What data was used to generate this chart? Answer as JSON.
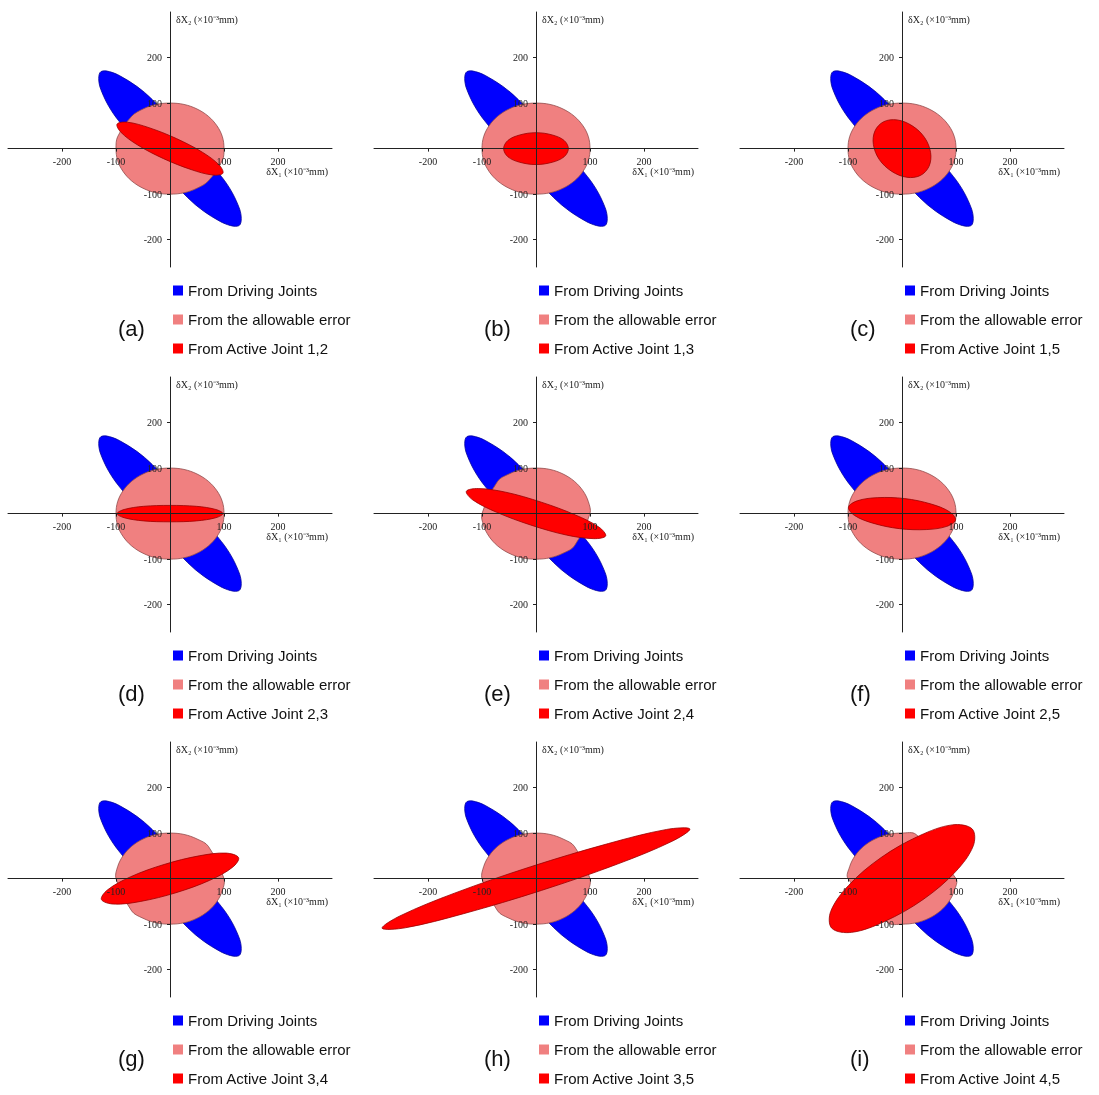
{
  "chart_data": [
    {
      "type": "area",
      "annotations": [
        "(a)"
      ],
      "xlabel": "δX₁ (×10⁻³mm)",
      "ylabel": "δX₂ (×10⁻³mm)",
      "xlim": [
        -300,
        300
      ],
      "ylim": [
        -260,
        300
      ],
      "xticks": [
        -200,
        -100,
        100,
        200
      ],
      "yticks": [
        -200,
        -100,
        100,
        200
      ],
      "grid": false,
      "legend": "bottom",
      "series": [
        {
          "name": "From Driving Joints",
          "color": "#0000ff",
          "x": [
            128,
            129,
            95,
            -33,
            -93,
            -128,
            -129,
            -95,
            33,
            93
          ],
          "values": [
            -169,
            -133,
            -61,
            108,
            160,
            169,
            133,
            61,
            -108,
            -160
          ]
        },
        {
          "name": "From the allowable error",
          "color": "#f08080",
          "x": [
            100,
            97,
            87,
            71,
            50,
            26,
            0,
            -26,
            -50,
            -71,
            -97,
            -100,
            -97,
            -87,
            -71,
            -50,
            -26,
            0,
            26,
            50,
            71,
            97
          ],
          "values": [
            0,
            26,
            50,
            71,
            87,
            97,
            100,
            97,
            87,
            71,
            26,
            0,
            -26,
            -50,
            -71,
            -87,
            -97,
            -100,
            -97,
            -87,
            -71,
            -26
          ]
        },
        {
          "name": "From Active Joint 1,2",
          "color": "#ff0000",
          "x": [
            98,
            91,
            60,
            12,
            -39,
            -79,
            -98,
            -91,
            -60,
            -12,
            39,
            79
          ],
          "values": [
            -54,
            -36,
            -8,
            22,
            46,
            58,
            54,
            36,
            8,
            -22,
            -46,
            -58
          ]
        }
      ]
    },
    {
      "type": "area",
      "annotations": [
        "(b)"
      ],
      "xlabel": "δX₁ (×10⁻³mm)",
      "ylabel": "δX₂ (×10⁻³mm)",
      "xlim": [
        -300,
        300
      ],
      "ylim": [
        -260,
        300
      ],
      "xticks": [
        -200,
        -100,
        100,
        200
      ],
      "yticks": [
        -200,
        -100,
        100,
        200
      ],
      "grid": false,
      "legend": "bottom",
      "series": [
        {
          "name": "From Driving Joints",
          "color": "#0000ff",
          "x": [
            128,
            129,
            95,
            -33,
            -93,
            -128,
            -129,
            -95,
            33,
            93
          ],
          "values": [
            -169,
            -133,
            -61,
            108,
            160,
            169,
            133,
            61,
            -108,
            -160
          ]
        },
        {
          "name": "From the allowable error",
          "color": "#f08080",
          "x": [
            100,
            97,
            87,
            71,
            50,
            26,
            0,
            -26,
            -50,
            -71,
            -87,
            -97,
            -100,
            -97,
            -87,
            -71,
            -50,
            -26,
            0,
            26,
            50,
            71,
            87,
            97
          ],
          "values": [
            0,
            26,
            50,
            71,
            87,
            97,
            100,
            97,
            87,
            71,
            50,
            26,
            0,
            -26,
            -50,
            -71,
            -87,
            -97,
            -100,
            -97,
            -87,
            -71,
            -50,
            -26
          ]
        },
        {
          "name": "From Active Joint 1,3",
          "color": "#ff0000",
          "x": [
            60,
            52,
            30,
            0,
            -30,
            -52,
            -60,
            -52,
            -30,
            0,
            30,
            52
          ],
          "values": [
            0,
            18,
            30,
            35,
            30,
            18,
            0,
            -18,
            -30,
            -35,
            -30,
            -18
          ]
        }
      ]
    },
    {
      "type": "area",
      "annotations": [
        "(c)"
      ],
      "xlabel": "δX₁ (×10⁻³mm)",
      "ylabel": "δX₂ (×10⁻³mm)",
      "xlim": [
        -300,
        300
      ],
      "ylim": [
        -260,
        300
      ],
      "xticks": [
        -200,
        -100,
        100,
        200
      ],
      "yticks": [
        -200,
        -100,
        100,
        200
      ],
      "grid": false,
      "legend": "bottom",
      "series": [
        {
          "name": "From Driving Joints",
          "color": "#0000ff",
          "x": [
            128,
            129,
            95,
            -33,
            -93,
            -128,
            -129,
            -95,
            33,
            93
          ],
          "values": [
            -169,
            -133,
            -61,
            108,
            160,
            169,
            133,
            61,
            -108,
            -160
          ]
        },
        {
          "name": "From the allowable error",
          "color": "#f08080",
          "x": [
            100,
            97,
            87,
            71,
            50,
            26,
            0,
            -26,
            -50,
            -71,
            -87,
            -97,
            -100,
            -97,
            -87,
            -71,
            -50,
            -26,
            0,
            26,
            50,
            71,
            87,
            97
          ],
          "values": [
            0,
            26,
            50,
            71,
            87,
            97,
            100,
            97,
            87,
            71,
            50,
            26,
            0,
            -26,
            -50,
            -71,
            -87,
            -97,
            -100,
            -97,
            -87,
            -71,
            -50,
            -26
          ]
        },
        {
          "name": "From Active Joint 1,5",
          "color": "#ff0000",
          "x": [
            34,
            50,
            53,
            42,
            19,
            -9,
            -34,
            -50,
            -53,
            -42,
            -19,
            9
          ],
          "values": [
            -59,
            -39,
            -9,
            24,
            50,
            63,
            59,
            39,
            9,
            -24,
            -50,
            -63
          ]
        }
      ]
    },
    {
      "type": "area",
      "annotations": [
        "(d)"
      ],
      "xlabel": "δX₁ (×10⁻³mm)",
      "ylabel": "δX₂ (×10⁻³mm)",
      "xlim": [
        -300,
        300
      ],
      "ylim": [
        -260,
        300
      ],
      "xticks": [
        -200,
        -100,
        100,
        200
      ],
      "yticks": [
        -200,
        -100,
        100,
        200
      ],
      "grid": false,
      "legend": "bottom",
      "series": [
        {
          "name": "From Driving Joints",
          "color": "#0000ff",
          "x": [
            128,
            129,
            95,
            -33,
            -93,
            -128,
            -129,
            -95,
            33,
            93
          ],
          "values": [
            -169,
            -133,
            -61,
            108,
            160,
            169,
            133,
            61,
            -108,
            -160
          ]
        },
        {
          "name": "From the allowable error",
          "color": "#f08080",
          "x": [
            100,
            97,
            87,
            71,
            50,
            26,
            0,
            -26,
            -50,
            -71,
            -87,
            -97,
            -100,
            -97,
            -87,
            -71,
            -50,
            -26,
            0,
            26,
            50,
            71,
            87,
            97
          ],
          "values": [
            0,
            26,
            50,
            71,
            87,
            97,
            100,
            97,
            87,
            71,
            50,
            26,
            0,
            -26,
            -50,
            -71,
            -87,
            -97,
            -100,
            -97,
            -87,
            -71,
            -50,
            -26
          ]
        },
        {
          "name": "From Active Joint 2,3",
          "color": "#ff0000",
          "x": [
            98,
            85,
            49,
            0,
            -49,
            -85,
            -98,
            -85,
            -49,
            0,
            49,
            85
          ],
          "values": [
            0,
            9,
            16,
            18,
            16,
            9,
            0,
            -9,
            -16,
            -18,
            -16,
            -9
          ]
        }
      ]
    },
    {
      "type": "area",
      "annotations": [
        "(e)"
      ],
      "xlabel": "δX₁ (×10⁻³mm)",
      "ylabel": "δX₂ (×10⁻³mm)",
      "xlim": [
        -300,
        300
      ],
      "ylim": [
        -260,
        300
      ],
      "xticks": [
        -200,
        -100,
        100,
        200
      ],
      "yticks": [
        -200,
        -100,
        100,
        200
      ],
      "grid": false,
      "legend": "bottom",
      "series": [
        {
          "name": "From Driving Joints",
          "color": "#0000ff",
          "x": [
            128,
            129,
            95,
            -33,
            -93,
            -128,
            -129,
            -95,
            33,
            93
          ],
          "values": [
            -169,
            -133,
            -61,
            108,
            160,
            169,
            133,
            61,
            -108,
            -160
          ]
        },
        {
          "name": "From the allowable error",
          "color": "#f08080",
          "x": [
            100,
            97,
            87,
            71,
            50,
            26,
            0,
            -26,
            -50,
            -71,
            -100,
            -97,
            -87,
            -71,
            -50,
            -26,
            0,
            26,
            50,
            71
          ],
          "values": [
            0,
            26,
            50,
            71,
            87,
            97,
            100,
            97,
            87,
            71,
            0,
            -26,
            -50,
            -71,
            -87,
            -97,
            -100,
            -97,
            -87,
            -71
          ]
        },
        {
          "name": "From Active Joint 2,4",
          "color": "#ff0000",
          "x": [
            129,
            117,
            73,
            10,
            -56,
            -107,
            -129,
            -117,
            -73,
            -10,
            56,
            107
          ],
          "values": [
            -49,
            -30,
            -3,
            25,
            47,
            55,
            49,
            30,
            3,
            -25,
            -47,
            -55
          ]
        }
      ]
    },
    {
      "type": "area",
      "annotations": [
        "(f)"
      ],
      "xlabel": "δX₁ (×10⁻³mm)",
      "ylabel": "δX₂ (×10⁻³mm)",
      "xlim": [
        -300,
        300
      ],
      "ylim": [
        -260,
        300
      ],
      "xticks": [
        -200,
        -100,
        100,
        200
      ],
      "yticks": [
        -200,
        -100,
        100,
        200
      ],
      "grid": false,
      "legend": "bottom",
      "series": [
        {
          "name": "From Driving Joints",
          "color": "#0000ff",
          "x": [
            128,
            129,
            95,
            -33,
            -93,
            -128,
            -129,
            -95,
            33,
            93
          ],
          "values": [
            -169,
            -133,
            -61,
            108,
            160,
            169,
            133,
            61,
            -108,
            -160
          ]
        },
        {
          "name": "From the allowable error",
          "color": "#f08080",
          "x": [
            100,
            97,
            87,
            71,
            50,
            26,
            0,
            -26,
            -50,
            -71,
            -87,
            -97,
            -100,
            -97,
            -87,
            -71,
            -50,
            -26,
            0,
            26,
            50,
            71,
            87,
            97
          ],
          "values": [
            0,
            26,
            50,
            71,
            87,
            97,
            100,
            97,
            87,
            71,
            50,
            26,
            0,
            -26,
            -50,
            -71,
            -87,
            -97,
            -100,
            -97,
            -87,
            -71,
            -50,
            -26
          ]
        },
        {
          "name": "From Active Joint 2,5",
          "color": "#ff0000",
          "x": [
            99,
            88,
            54,
            5,
            -46,
            -83,
            -99,
            -88,
            -54,
            -5,
            46,
            83
          ],
          "values": [
            -14,
            4,
            21,
            33,
            35,
            28,
            14,
            -4,
            -21,
            -33,
            -35,
            -28
          ]
        }
      ]
    },
    {
      "type": "area",
      "annotations": [
        "(g)"
      ],
      "xlabel": "δX₁ (×10⁻³mm)",
      "ylabel": "δX₂ (×10⁻³mm)",
      "xlim": [
        -300,
        300
      ],
      "ylim": [
        -260,
        300
      ],
      "xticks": [
        -200,
        -100,
        100,
        200
      ],
      "yticks": [
        -200,
        -100,
        100,
        200
      ],
      "grid": false,
      "legend": "bottom",
      "series": [
        {
          "name": "From Driving Joints",
          "color": "#0000ff",
          "x": [
            128,
            129,
            95,
            -33,
            -93,
            -128,
            -129,
            -95,
            33,
            93
          ],
          "values": [
            -169,
            -133,
            -61,
            108,
            160,
            169,
            133,
            61,
            -108,
            -160
          ]
        },
        {
          "name": "From the allowable error",
          "color": "#f08080",
          "x": [
            100,
            71,
            50,
            26,
            0,
            -26,
            -50,
            -71,
            -87,
            -97,
            -100,
            -71,
            -50,
            -26,
            0,
            26,
            50,
            71,
            87,
            97
          ],
          "values": [
            0,
            71,
            87,
            97,
            100,
            97,
            87,
            71,
            50,
            26,
            0,
            -71,
            -87,
            -97,
            -100,
            -97,
            -87,
            -71,
            -50,
            -26
          ]
        },
        {
          "name": "From Active Joint 3,4",
          "color": "#ff0000",
          "x": [
            127,
            104,
            54,
            -11,
            -73,
            -116,
            -127,
            -104,
            -54,
            11,
            73,
            116
          ],
          "values": [
            46,
            56,
            50,
            31,
            4,
            -25,
            -46,
            -56,
            -50,
            -31,
            -4,
            25
          ]
        }
      ]
    },
    {
      "type": "area",
      "annotations": [
        "(h)"
      ],
      "xlabel": "δX₁ (×10⁻³mm)",
      "ylabel": "δX₂ (×10⁻³mm)",
      "xlim": [
        -300,
        300
      ],
      "ylim": [
        -260,
        300
      ],
      "xticks": [
        -200,
        -100,
        100,
        200
      ],
      "yticks": [
        -200,
        -100,
        100,
        200
      ],
      "grid": false,
      "legend": "bottom",
      "series": [
        {
          "name": "From Driving Joints",
          "color": "#0000ff",
          "x": [
            128,
            129,
            95,
            -33,
            -93,
            -128,
            -129,
            -95,
            33,
            93
          ],
          "values": [
            -169,
            -133,
            -61,
            108,
            160,
            169,
            133,
            61,
            -108,
            -160
          ]
        },
        {
          "name": "From the allowable error",
          "color": "#f08080",
          "x": [
            100,
            71,
            50,
            26,
            0,
            -26,
            -50,
            -71,
            -87,
            -97,
            -100,
            -71,
            -50,
            -26,
            0,
            26,
            50,
            71,
            87,
            97
          ],
          "values": [
            0,
            71,
            87,
            97,
            100,
            97,
            87,
            71,
            50,
            26,
            0,
            -71,
            -87,
            -97,
            -100,
            -97,
            -87,
            -71,
            -50,
            -26
          ]
        },
        {
          "name": "From Active Joint 3,5",
          "color": "#ff0000",
          "x": [
            285,
            242,
            134,
            -10,
            -151,
            -252,
            -285,
            -242,
            -134,
            10,
            151,
            252
          ],
          "values": [
            109,
            108,
            77,
            26,
            -32,
            -82,
            -109,
            -108,
            -77,
            -26,
            32,
            82
          ]
        }
      ]
    },
    {
      "type": "area",
      "annotations": [
        "(i)"
      ],
      "xlabel": "δX₁ (×10⁻³mm)",
      "ylabel": "δX₂ (×10⁻³mm)",
      "xlim": [
        -300,
        300
      ],
      "ylim": [
        -260,
        300
      ],
      "xticks": [
        -200,
        -100,
        100,
        200
      ],
      "yticks": [
        -200,
        -100,
        100,
        200
      ],
      "grid": false,
      "legend": "bottom",
      "series": [
        {
          "name": "From Driving Joints",
          "color": "#0000ff",
          "x": [
            128,
            129,
            95,
            -33,
            -93,
            -128,
            -129,
            -95,
            33,
            93
          ],
          "values": [
            -169,
            -133,
            -61,
            108,
            160,
            169,
            133,
            61,
            -108,
            -160
          ]
        },
        {
          "name": "From the allowable error",
          "color": "#f08080",
          "x": [
            100,
            26,
            0,
            -26,
            -50,
            -71,
            -87,
            -97,
            -100,
            -26,
            0,
            26,
            50,
            71,
            87,
            97
          ],
          "values": [
            0,
            97,
            100,
            97,
            87,
            71,
            50,
            26,
            0,
            -97,
            -100,
            -97,
            -87,
            -71,
            -50,
            -26
          ]
        },
        {
          "name": "From Active Joint 4,5",
          "color": "#ff0000",
          "x": [
            130,
            93,
            32,
            -39,
            -99,
            -132,
            -130,
            -93,
            -32,
            39,
            99,
            132
          ],
          "values": [
            109,
            118,
            94,
            46,
            -15,
            -72,
            -109,
            -118,
            -94,
            -46,
            15,
            72
          ]
        }
      ]
    }
  ]
}
